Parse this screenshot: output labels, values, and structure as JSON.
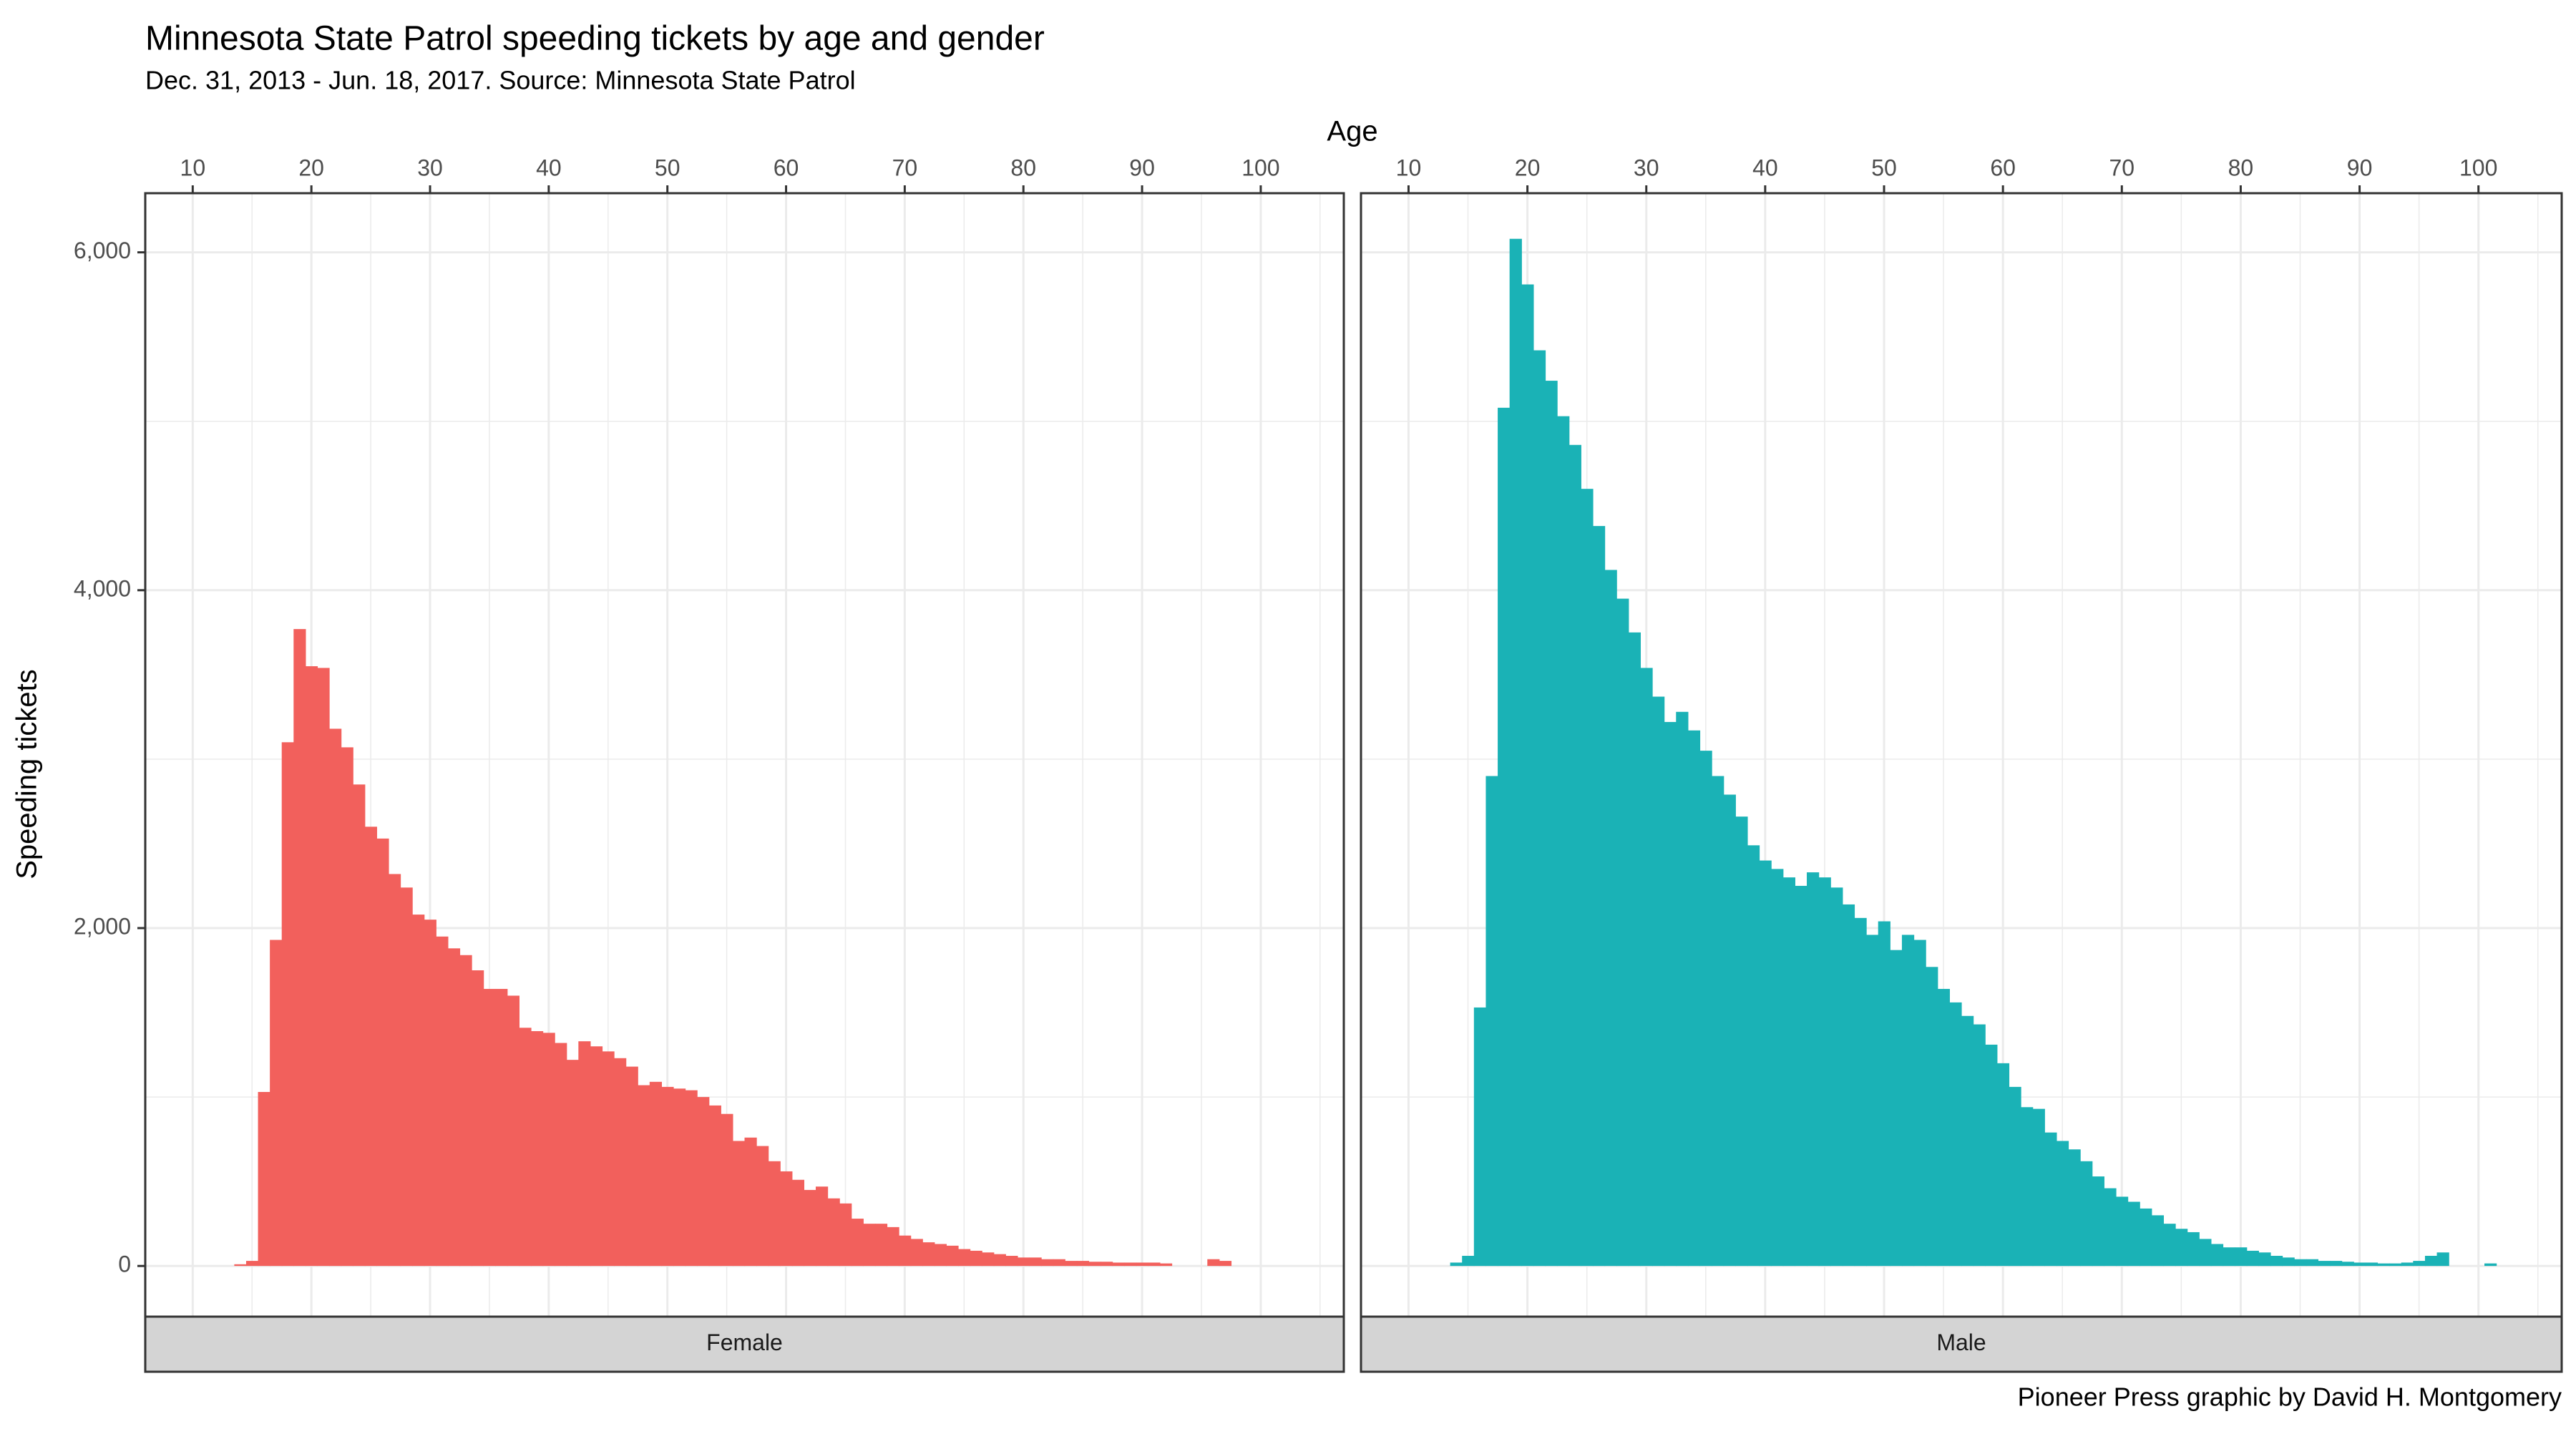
{
  "title": "Minnesota State Patrol speeding tickets by age and gender",
  "subtitle": "Dec. 31, 2013 - Jun. 18, 2017. Source: Minnesota State Patrol",
  "caption": "Pioneer Press graphic by David H. Montgomery",
  "colors": {
    "female": "#f2605c",
    "male": "#1ab2b6",
    "strip": "#d4d4d4",
    "grid": "#ebebeb",
    "border": "#333333"
  },
  "chart_data": {
    "type": "bar",
    "title": "Minnesota State Patrol speeding tickets by age and gender",
    "subtitle": "Dec. 31, 2013 - Jun. 18, 2017. Source: Minnesota State Patrol",
    "xlabel": "Age",
    "ylabel": "Speeding tickets",
    "x_position": "top",
    "xlim": [
      6,
      107
    ],
    "ylim": [
      -300,
      6350
    ],
    "x_ticks": [
      10,
      20,
      30,
      40,
      50,
      60,
      70,
      80,
      90,
      100
    ],
    "y_ticks": [
      0,
      2000,
      4000,
      6000
    ],
    "y_tick_labels": [
      "0",
      "2,000",
      "4,000",
      "6,000"
    ],
    "grid": true,
    "facets": [
      {
        "name": "Female",
        "color": "#f2605c",
        "series": [
          {
            "name": "Female",
            "x": [
              14,
              15,
              16,
              17,
              18,
              19,
              20,
              21,
              22,
              23,
              24,
              25,
              26,
              27,
              28,
              29,
              30,
              31,
              32,
              33,
              34,
              35,
              36,
              37,
              38,
              39,
              40,
              41,
              42,
              43,
              44,
              45,
              46,
              47,
              48,
              49,
              50,
              51,
              52,
              53,
              54,
              55,
              56,
              57,
              58,
              59,
              60,
              61,
              62,
              63,
              64,
              65,
              66,
              67,
              68,
              69,
              70,
              71,
              72,
              73,
              74,
              75,
              76,
              77,
              78,
              79,
              80,
              81,
              82,
              83,
              84,
              85,
              86,
              87,
              88,
              89,
              90,
              91,
              92,
              96,
              97
            ],
            "values": [
              10,
              30,
              1030,
              1930,
              3100,
              3770,
              3550,
              3540,
              3180,
              3070,
              2850,
              2600,
              2530,
              2320,
              2240,
              2080,
              2050,
              1950,
              1880,
              1840,
              1750,
              1640,
              1640,
              1600,
              1410,
              1390,
              1380,
              1320,
              1220,
              1330,
              1300,
              1270,
              1230,
              1180,
              1070,
              1090,
              1060,
              1050,
              1040,
              1000,
              950,
              900,
              740,
              760,
              710,
              620,
              560,
              510,
              450,
              470,
              400,
              370,
              280,
              250,
              250,
              230,
              180,
              160,
              140,
              130,
              120,
              100,
              90,
              80,
              70,
              60,
              50,
              50,
              40,
              40,
              30,
              30,
              25,
              25,
              20,
              20,
              20,
              20,
              15,
              40,
              30
            ]
          }
        ]
      },
      {
        "name": "Male",
        "color": "#1ab2b6",
        "series": [
          {
            "name": "Male",
            "x": [
              14,
              15,
              16,
              17,
              18,
              19,
              20,
              21,
              22,
              23,
              24,
              25,
              26,
              27,
              28,
              29,
              30,
              31,
              32,
              33,
              34,
              35,
              36,
              37,
              38,
              39,
              40,
              41,
              42,
              43,
              44,
              45,
              46,
              47,
              48,
              49,
              50,
              51,
              52,
              53,
              54,
              55,
              56,
              57,
              58,
              59,
              60,
              61,
              62,
              63,
              64,
              65,
              66,
              67,
              68,
              69,
              70,
              71,
              72,
              73,
              74,
              75,
              76,
              77,
              78,
              79,
              80,
              81,
              82,
              83,
              84,
              85,
              86,
              87,
              88,
              89,
              90,
              91,
              92,
              93,
              94,
              95,
              96,
              97,
              101
            ],
            "values": [
              20,
              60,
              1530,
              2900,
              5080,
              6080,
              5810,
              5420,
              5240,
              5030,
              4860,
              4600,
              4380,
              4120,
              3950,
              3750,
              3540,
              3370,
              3220,
              3280,
              3170,
              3050,
              2900,
              2790,
              2660,
              2490,
              2400,
              2350,
              2300,
              2250,
              2330,
              2300,
              2240,
              2140,
              2060,
              1960,
              2040,
              1870,
              1960,
              1930,
              1770,
              1640,
              1560,
              1480,
              1430,
              1310,
              1200,
              1060,
              940,
              930,
              790,
              740,
              690,
              620,
              530,
              460,
              410,
              380,
              340,
              300,
              250,
              220,
              200,
              160,
              130,
              110,
              110,
              90,
              80,
              60,
              50,
              40,
              40,
              30,
              30,
              25,
              20,
              20,
              15,
              15,
              20,
              30,
              60,
              80,
              15
            ]
          }
        ]
      }
    ]
  }
}
